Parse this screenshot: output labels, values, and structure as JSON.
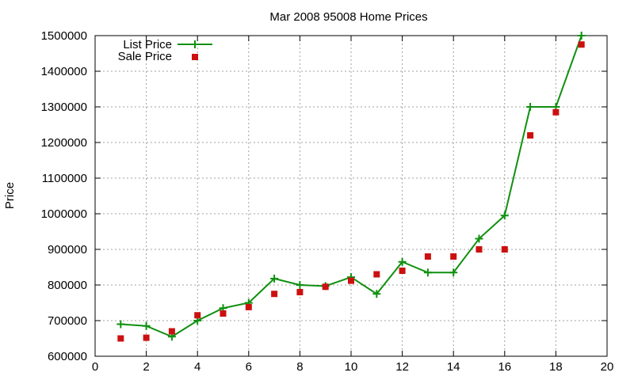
{
  "chart_data": {
    "type": "line",
    "title": "Mar 2008 95008 Home Prices",
    "xlabel": "",
    "ylabel": "Price",
    "xlim": [
      0,
      20
    ],
    "ylim": [
      600000,
      1500000
    ],
    "x_ticks": [
      0,
      2,
      4,
      6,
      8,
      10,
      12,
      14,
      16,
      18,
      20
    ],
    "y_ticks": [
      600000,
      700000,
      800000,
      900000,
      1000000,
      1100000,
      1200000,
      1300000,
      1400000,
      1500000
    ],
    "grid": true,
    "legend_position": "top-left",
    "series": [
      {
        "name": "List Price",
        "style": "line+cross",
        "color": "#109010",
        "x": [
          1,
          2,
          3,
          4,
          5,
          6,
          7,
          8,
          9,
          10,
          11,
          12,
          13,
          14,
          15,
          16,
          17,
          18,
          19
        ],
        "y": [
          690000,
          685000,
          655000,
          700000,
          735000,
          750000,
          818000,
          800000,
          797000,
          822000,
          775000,
          865000,
          835000,
          835000,
          930000,
          995000,
          1300000,
          1300000,
          1500000
        ]
      },
      {
        "name": "Sale Price",
        "style": "square-markers",
        "color": "#cc1010",
        "x": [
          1,
          2,
          3,
          4,
          5,
          6,
          7,
          8,
          9,
          10,
          11,
          12,
          13,
          14,
          15,
          16,
          17,
          18,
          19
        ],
        "y": [
          650000,
          652000,
          670000,
          715000,
          720000,
          738000,
          775000,
          780000,
          795000,
          812000,
          830000,
          840000,
          880000,
          880000,
          900000,
          900000,
          1220000,
          1285000,
          1475000
        ]
      }
    ]
  }
}
